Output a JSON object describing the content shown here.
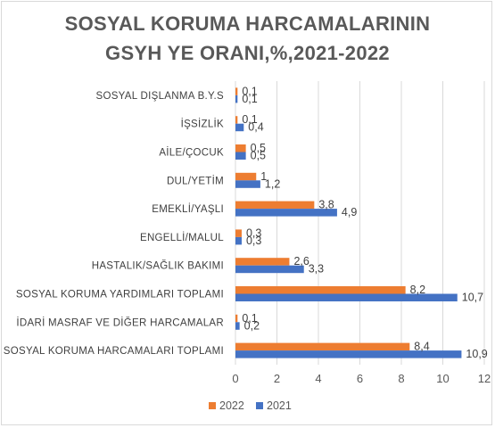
{
  "chart_data": {
    "type": "bar",
    "orientation": "horizontal",
    "title_lines": [
      "SOSYAL KORUMA HARCAMALARININ",
      "GSYH YE ORANI,%,2021-2022"
    ],
    "categories": [
      "SOSYAL DIŞLANMA B.Y.S",
      "İŞSİZLİK",
      "AİLE/ÇOCUK",
      "DUL/YETİM",
      "EMEKLİ/YAŞLI",
      "ENGELLİ/MALUL",
      "HASTALIK/SAĞLIK BAKIMI",
      "SOSYAL KORUMA YARDIMLARI TOPLAMI",
      "İDARİ MASRAF VE DİĞER HARCAMALAR",
      "SOSYAL KORUMA HARCAMALARI TOPLAMI"
    ],
    "series": [
      {
        "name": "2022",
        "color": "#ed7d31",
        "values": [
          0.1,
          0.1,
          0.5,
          1,
          3.8,
          0.3,
          2.6,
          8.2,
          0.1,
          8.4
        ],
        "labels": [
          "0,1",
          "0,1",
          "0,5",
          "1",
          "3,8",
          "0,3",
          "2,6",
          "8,2",
          "0,1",
          "8,4"
        ]
      },
      {
        "name": "2021",
        "color": "#4472c4",
        "values": [
          0.1,
          0.4,
          0.5,
          1.2,
          4.9,
          0.3,
          3.3,
          10.7,
          0.2,
          10.9
        ],
        "labels": [
          "0,1",
          "0,4",
          "0,5",
          "1,2",
          "4,9",
          "0,3",
          "3,3",
          "10,7",
          "0,2",
          "10,9"
        ]
      }
    ],
    "xlim": [
      0,
      12
    ],
    "xticks": [
      "0",
      "2",
      "4",
      "6",
      "8",
      "10",
      "12"
    ],
    "grid": true,
    "legend_position": "bottom"
  }
}
